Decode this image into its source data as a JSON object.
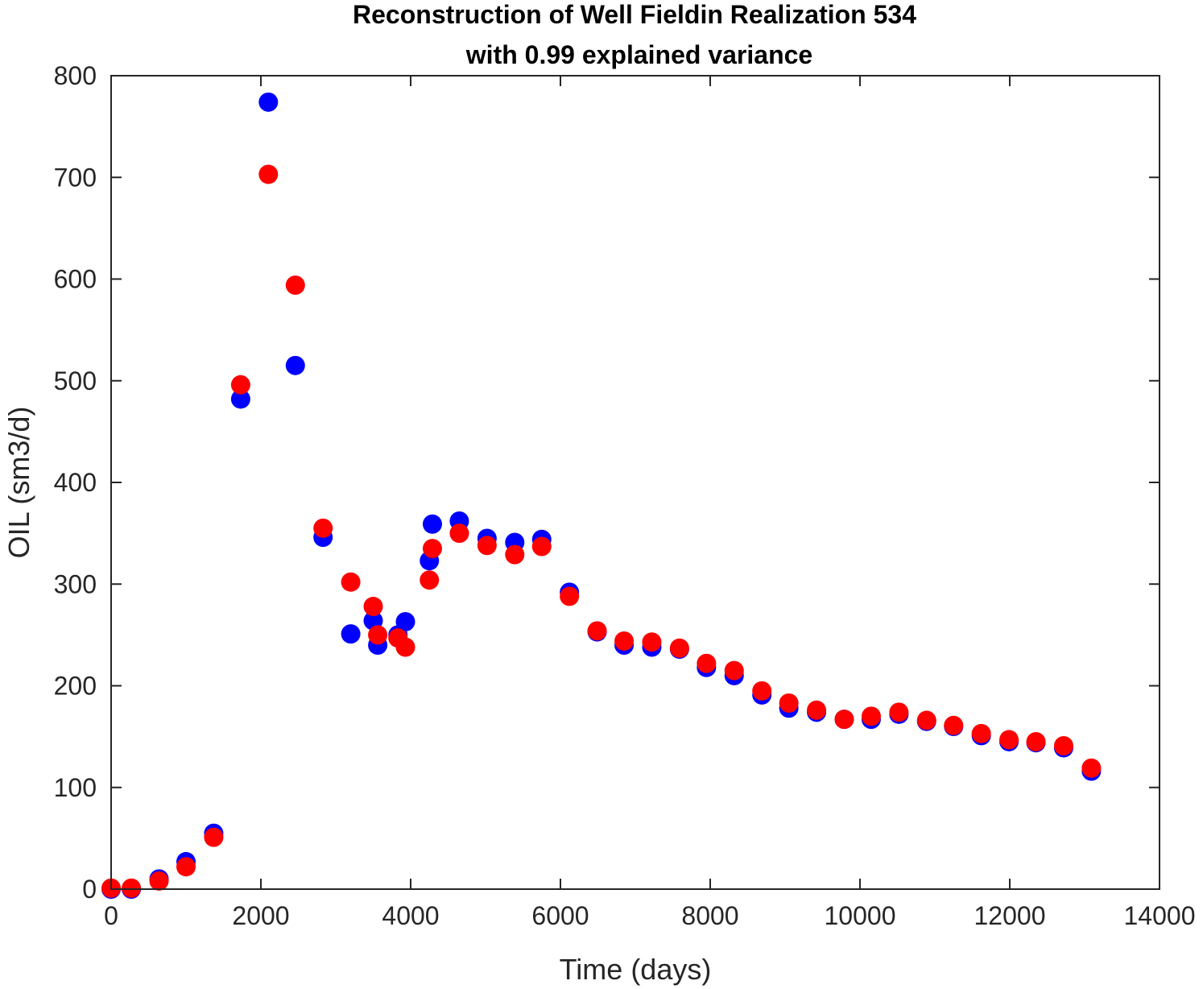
{
  "chart_data": {
    "type": "scatter",
    "title": [
      "Reconstruction of Well Fieldin Realization 534",
      "with 0.99 explained variance"
    ],
    "xlabel": "Time (days)",
    "ylabel": "OIL (sm3/d)",
    "xlim": [
      0,
      14000
    ],
    "ylim": [
      0,
      800
    ],
    "xticks": [
      0,
      2000,
      4000,
      6000,
      8000,
      10000,
      12000,
      14000
    ],
    "yticks": [
      0,
      100,
      200,
      300,
      400,
      500,
      600,
      700,
      800
    ],
    "grid": false,
    "series": [
      {
        "color": "#0000ff",
        "x": [
          0,
          270,
          640,
          1000,
          1370,
          1730,
          2100,
          2460,
          2830,
          3200,
          3500,
          3560,
          3830,
          3930,
          4250,
          4290,
          4650,
          5020,
          5390,
          5750,
          6120,
          6490,
          6850,
          7220,
          7590,
          7950,
          8320,
          8690,
          9050,
          9420,
          9790,
          10150,
          10520,
          10890,
          11250,
          11620,
          11990,
          12350,
          12720,
          13090
        ],
        "y": [
          0,
          0,
          10,
          27,
          55,
          482,
          774,
          515,
          346,
          251,
          264,
          240,
          250,
          263,
          323,
          359,
          362,
          345,
          341,
          344,
          292,
          253,
          240,
          238,
          236,
          218,
          210,
          191,
          178,
          174,
          167,
          167,
          172,
          165,
          160,
          151,
          145,
          144,
          139,
          116
        ]
      },
      {
        "color": "#ff0000",
        "x": [
          0,
          270,
          640,
          1000,
          1370,
          1730,
          2100,
          2460,
          2830,
          3200,
          3500,
          3560,
          3830,
          3930,
          4250,
          4290,
          4650,
          5020,
          5390,
          5750,
          6120,
          6490,
          6850,
          7220,
          7590,
          7950,
          8320,
          8690,
          9050,
          9420,
          9790,
          10150,
          10520,
          10890,
          11250,
          11620,
          11990,
          12350,
          12720,
          13090
        ],
        "y": [
          1,
          1,
          8,
          22,
          51,
          496,
          703,
          594,
          355,
          302,
          278,
          250,
          247,
          238,
          304,
          335,
          350,
          338,
          329,
          337,
          288,
          254,
          244,
          243,
          237,
          222,
          215,
          195,
          183,
          176,
          167,
          170,
          174,
          166,
          161,
          153,
          147,
          145,
          141,
          119
        ]
      }
    ]
  }
}
